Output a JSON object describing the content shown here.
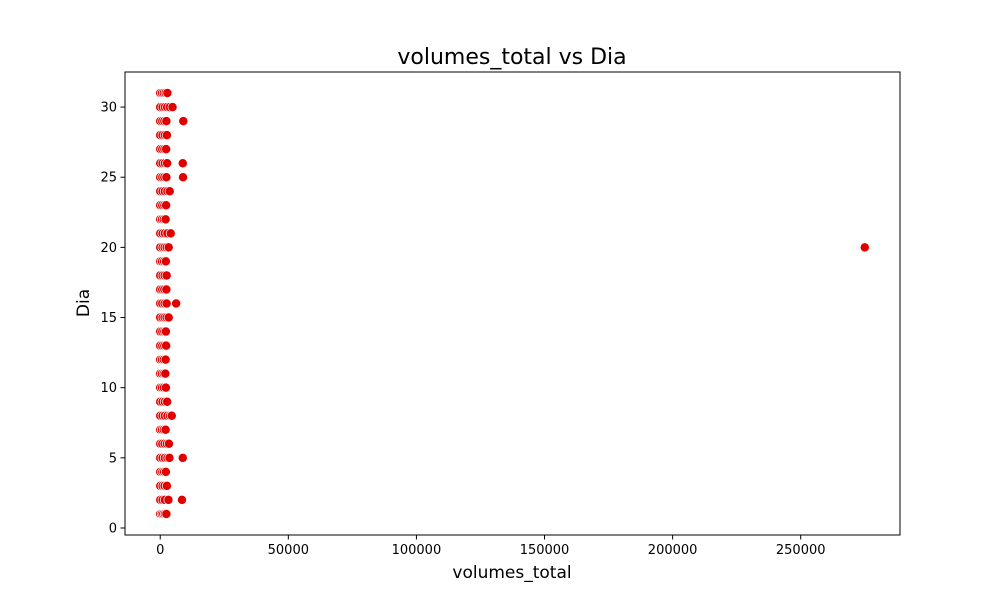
{
  "chart_data": {
    "type": "scatter",
    "title": "volumes_total vs Dia",
    "xlabel": "volumes_total",
    "ylabel": "Dia",
    "xlim": [
      -13750,
      288750
    ],
    "ylim": [
      -0.5,
      32.5
    ],
    "xticks": [
      0,
      50000,
      100000,
      150000,
      200000,
      250000
    ],
    "xtick_labels": [
      "0",
      "50000",
      "100000",
      "150000",
      "200000",
      "250000"
    ],
    "yticks": [
      0,
      5,
      10,
      15,
      20,
      25,
      30
    ],
    "ytick_labels": [
      "0",
      "5",
      "10",
      "15",
      "20",
      "25",
      "30"
    ],
    "grid": false,
    "colors": {
      "point_fill": "#e00000",
      "point_edge": "#ffffff"
    },
    "series": [
      {
        "points": [
          {
            "x": 0,
            "y": 1
          },
          {
            "x": 600,
            "y": 1
          },
          {
            "x": 1200,
            "y": 1
          },
          {
            "x": 1800,
            "y": 1
          },
          {
            "x": 2400,
            "y": 1
          },
          {
            "x": 0,
            "y": 2
          },
          {
            "x": 900,
            "y": 2
          },
          {
            "x": 1800,
            "y": 2
          },
          {
            "x": 3200,
            "y": 2
          },
          {
            "x": 8500,
            "y": 2
          },
          {
            "x": 0,
            "y": 3
          },
          {
            "x": 900,
            "y": 3
          },
          {
            "x": 1700,
            "y": 3
          },
          {
            "x": 2600,
            "y": 3
          },
          {
            "x": 0,
            "y": 4
          },
          {
            "x": 800,
            "y": 4
          },
          {
            "x": 1500,
            "y": 4
          },
          {
            "x": 2200,
            "y": 4
          },
          {
            "x": 0,
            "y": 5
          },
          {
            "x": 900,
            "y": 5
          },
          {
            "x": 1800,
            "y": 5
          },
          {
            "x": 2800,
            "y": 5
          },
          {
            "x": 3600,
            "y": 5
          },
          {
            "x": 8800,
            "y": 5
          },
          {
            "x": 0,
            "y": 6
          },
          {
            "x": 800,
            "y": 6
          },
          {
            "x": 1700,
            "y": 6
          },
          {
            "x": 2600,
            "y": 6
          },
          {
            "x": 3400,
            "y": 6
          },
          {
            "x": 0,
            "y": 7
          },
          {
            "x": 700,
            "y": 7
          },
          {
            "x": 1400,
            "y": 7
          },
          {
            "x": 2100,
            "y": 7
          },
          {
            "x": 0,
            "y": 8
          },
          {
            "x": 900,
            "y": 8
          },
          {
            "x": 1800,
            "y": 8
          },
          {
            "x": 2800,
            "y": 8
          },
          {
            "x": 3800,
            "y": 8
          },
          {
            "x": 4500,
            "y": 8
          },
          {
            "x": 0,
            "y": 9
          },
          {
            "x": 900,
            "y": 9
          },
          {
            "x": 1800,
            "y": 9
          },
          {
            "x": 2700,
            "y": 9
          },
          {
            "x": 0,
            "y": 10
          },
          {
            "x": 700,
            "y": 10
          },
          {
            "x": 1400,
            "y": 10
          },
          {
            "x": 2200,
            "y": 10
          },
          {
            "x": 0,
            "y": 11
          },
          {
            "x": 700,
            "y": 11
          },
          {
            "x": 1400,
            "y": 11
          },
          {
            "x": 2000,
            "y": 11
          },
          {
            "x": 0,
            "y": 12
          },
          {
            "x": 700,
            "y": 12
          },
          {
            "x": 1400,
            "y": 12
          },
          {
            "x": 2100,
            "y": 12
          },
          {
            "x": 0,
            "y": 13
          },
          {
            "x": 800,
            "y": 13
          },
          {
            "x": 1600,
            "y": 13
          },
          {
            "x": 2300,
            "y": 13
          },
          {
            "x": 0,
            "y": 14
          },
          {
            "x": 800,
            "y": 14
          },
          {
            "x": 1600,
            "y": 14
          },
          {
            "x": 2200,
            "y": 14
          },
          {
            "x": 0,
            "y": 15
          },
          {
            "x": 900,
            "y": 15
          },
          {
            "x": 1700,
            "y": 15
          },
          {
            "x": 2500,
            "y": 15
          },
          {
            "x": 3300,
            "y": 15
          },
          {
            "x": 0,
            "y": 16
          },
          {
            "x": 800,
            "y": 16
          },
          {
            "x": 1700,
            "y": 16
          },
          {
            "x": 2500,
            "y": 16
          },
          {
            "x": 6200,
            "y": 16
          },
          {
            "x": 0,
            "y": 17
          },
          {
            "x": 800,
            "y": 17
          },
          {
            "x": 1600,
            "y": 17
          },
          {
            "x": 2400,
            "y": 17
          },
          {
            "x": 0,
            "y": 18
          },
          {
            "x": 900,
            "y": 18
          },
          {
            "x": 1700,
            "y": 18
          },
          {
            "x": 2500,
            "y": 18
          },
          {
            "x": 0,
            "y": 19
          },
          {
            "x": 700,
            "y": 19
          },
          {
            "x": 1500,
            "y": 19
          },
          {
            "x": 2200,
            "y": 19
          },
          {
            "x": 0,
            "y": 20
          },
          {
            "x": 900,
            "y": 20
          },
          {
            "x": 1700,
            "y": 20
          },
          {
            "x": 2500,
            "y": 20
          },
          {
            "x": 3300,
            "y": 20
          },
          {
            "x": 275000,
            "y": 20
          },
          {
            "x": 0,
            "y": 21
          },
          {
            "x": 900,
            "y": 21
          },
          {
            "x": 1800,
            "y": 21
          },
          {
            "x": 2800,
            "y": 21
          },
          {
            "x": 4100,
            "y": 21
          },
          {
            "x": 0,
            "y": 22
          },
          {
            "x": 700,
            "y": 22
          },
          {
            "x": 1400,
            "y": 22
          },
          {
            "x": 2100,
            "y": 22
          },
          {
            "x": 0,
            "y": 23
          },
          {
            "x": 800,
            "y": 23
          },
          {
            "x": 1600,
            "y": 23
          },
          {
            "x": 2300,
            "y": 23
          },
          {
            "x": 0,
            "y": 24
          },
          {
            "x": 900,
            "y": 24
          },
          {
            "x": 1800,
            "y": 24
          },
          {
            "x": 2800,
            "y": 24
          },
          {
            "x": 3700,
            "y": 24
          },
          {
            "x": 0,
            "y": 25
          },
          {
            "x": 800,
            "y": 25
          },
          {
            "x": 1600,
            "y": 25
          },
          {
            "x": 2400,
            "y": 25
          },
          {
            "x": 8900,
            "y": 25
          },
          {
            "x": 0,
            "y": 26
          },
          {
            "x": 900,
            "y": 26
          },
          {
            "x": 1800,
            "y": 26
          },
          {
            "x": 2700,
            "y": 26
          },
          {
            "x": 8800,
            "y": 26
          },
          {
            "x": 0,
            "y": 27
          },
          {
            "x": 800,
            "y": 27
          },
          {
            "x": 1600,
            "y": 27
          },
          {
            "x": 2300,
            "y": 27
          },
          {
            "x": 0,
            "y": 28
          },
          {
            "x": 900,
            "y": 28
          },
          {
            "x": 1800,
            "y": 28
          },
          {
            "x": 2600,
            "y": 28
          },
          {
            "x": 0,
            "y": 29
          },
          {
            "x": 800,
            "y": 29
          },
          {
            "x": 1600,
            "y": 29
          },
          {
            "x": 2400,
            "y": 29
          },
          {
            "x": 9000,
            "y": 29
          },
          {
            "x": 0,
            "y": 30
          },
          {
            "x": 900,
            "y": 30
          },
          {
            "x": 1800,
            "y": 30
          },
          {
            "x": 2700,
            "y": 30
          },
          {
            "x": 3700,
            "y": 30
          },
          {
            "x": 4800,
            "y": 30
          },
          {
            "x": 0,
            "y": 31
          },
          {
            "x": 700,
            "y": 31
          },
          {
            "x": 1400,
            "y": 31
          },
          {
            "x": 2100,
            "y": 31
          },
          {
            "x": 2800,
            "y": 31
          }
        ]
      }
    ]
  }
}
